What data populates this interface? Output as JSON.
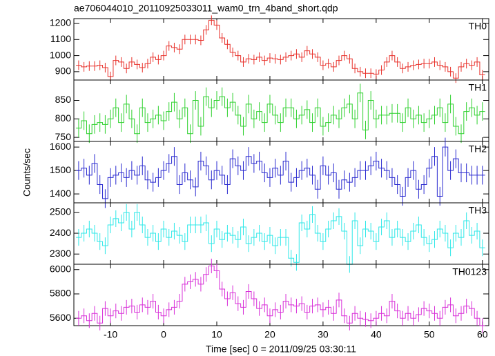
{
  "chart_data": {
    "type": "step",
    "title": "ae706044010_20110925033011_wam0_trn_4band_short.qdp",
    "xlabel": "Time [sec] 0 = 2011/09/25 03:30:11",
    "ylabel": "Counts/sec",
    "xlim": [
      -16.9,
      61.2
    ],
    "xticks": [
      -10,
      0,
      10,
      20,
      30,
      40,
      50,
      60
    ],
    "x": [
      -16,
      -15,
      -14,
      -13,
      -12,
      -11,
      -10,
      -9,
      -8,
      -7,
      -6,
      -5,
      -4,
      -3,
      -2,
      -1,
      0,
      1,
      2,
      3,
      4,
      5,
      6,
      7,
      8,
      9,
      10,
      11,
      12,
      13,
      14,
      15,
      16,
      17,
      18,
      19,
      20,
      21,
      22,
      23,
      24,
      25,
      26,
      27,
      28,
      29,
      30,
      31,
      32,
      33,
      34,
      35,
      36,
      37,
      38,
      39,
      40,
      41,
      42,
      43,
      44,
      45,
      46,
      47,
      48,
      49,
      50,
      51,
      52,
      53,
      54,
      55,
      56,
      57,
      58,
      59,
      60
    ],
    "series": [
      {
        "name": "TH0",
        "color": "#e8302a",
        "error": 30,
        "ylim": [
          848,
          1230
        ],
        "yticks": [
          900,
          1000,
          1100,
          1200
        ],
        "values": [
          940,
          930,
          935,
          935,
          940,
          925,
          870,
          970,
          960,
          920,
          960,
          945,
          925,
          950,
          990,
          975,
          1000,
          1060,
          1050,
          1040,
          1100,
          1100,
          1100,
          1095,
          1160,
          1220,
          1190,
          1110,
          1070,
          1020,
          1000,
          960,
          980,
          975,
          990,
          970,
          985,
          980,
          975,
          990,
          1000,
          1010,
          990,
          1030,
          1010,
          990,
          940,
          950,
          930,
          970,
          1000,
          980,
          920,
          900,
          890,
          890,
          885,
          910,
          960,
          1000,
          960,
          920,
          930,
          940,
          945,
          950,
          950,
          960,
          940,
          930,
          900,
          860,
          930,
          950,
          940,
          960,
          880
        ]
      },
      {
        "name": "TH1",
        "color": "#2ed12e",
        "error": 25,
        "ylim": [
          739,
          905
        ],
        "yticks": [
          750,
          800,
          850
        ],
        "values": [
          775,
          795,
          760,
          785,
          790,
          785,
          800,
          830,
          790,
          840,
          800,
          760,
          830,
          790,
          800,
          810,
          795,
          820,
          845,
          800,
          830,
          760,
          850,
          780,
          860,
          830,
          850,
          860,
          830,
          845,
          810,
          780,
          840,
          800,
          820,
          790,
          840,
          810,
          790,
          830,
          830,
          800,
          810,
          825,
          790,
          830,
          780,
          790,
          810,
          800,
          830,
          840,
          800,
          870,
          770,
          850,
          800,
          810,
          810,
          815,
          815,
          790,
          830,
          800,
          810,
          790,
          800,
          810,
          830,
          790,
          840,
          780,
          760,
          820,
          830,
          810,
          820
        ]
      },
      {
        "name": "TH2",
        "color": "#2a2ad0",
        "error": 40,
        "ylim": [
          1362,
          1624
        ],
        "yticks": [
          1400,
          1500,
          1600
        ],
        "values": [
          1500,
          1510,
          1480,
          1530,
          1440,
          1380,
          1470,
          1480,
          1490,
          1470,
          1500,
          1480,
          1520,
          1460,
          1450,
          1470,
          1500,
          1530,
          1560,
          1440,
          1490,
          1460,
          1430,
          1540,
          1520,
          1460,
          1500,
          1480,
          1440,
          1550,
          1520,
          1500,
          1560,
          1530,
          1540,
          1490,
          1470,
          1510,
          1480,
          1540,
          1450,
          1470,
          1500,
          1510,
          1480,
          1420,
          1520,
          1480,
          1490,
          1420,
          1460,
          1450,
          1470,
          1500,
          1500,
          1520,
          1540,
          1510,
          1500,
          1470,
          1440,
          1390,
          1470,
          1500,
          1420,
          1440,
          1510,
          1560,
          1390,
          1600,
          1500,
          1550,
          1490,
          1490,
          1480,
          1480,
          1480
        ]
      },
      {
        "name": "TH3",
        "color": "#2ee8e8",
        "error": 40,
        "ylim": [
          2251,
          2546
        ],
        "yticks": [
          2300,
          2400,
          2500
        ],
        "values": [
          2380,
          2400,
          2420,
          2400,
          2360,
          2340,
          2440,
          2470,
          2450,
          2500,
          2420,
          2500,
          2440,
          2380,
          2400,
          2360,
          2420,
          2380,
          2410,
          2390,
          2360,
          2440,
          2440,
          2440,
          2450,
          2350,
          2420,
          2370,
          2400,
          2390,
          2370,
          2430,
          2350,
          2380,
          2400,
          2360,
          2390,
          2340,
          2380,
          2380,
          2280,
          2260,
          2450,
          2420,
          2490,
          2400,
          2360,
          2420,
          2460,
          2480,
          2410,
          2250,
          2460,
          2340,
          2420,
          2410,
          2360,
          2430,
          2460,
          2380,
          2420,
          2380,
          2360,
          2410,
          2440,
          2380,
          2350,
          2370,
          2420,
          2400,
          2330,
          2400,
          2380,
          2460,
          2390,
          2410,
          2330
        ]
      },
      {
        "name": "TH0123",
        "color": "#d82ed8",
        "error": 60,
        "ylim": [
          5539,
          6044
        ],
        "yticks": [
          5600,
          5800,
          6000
        ],
        "values": [
          5600,
          5620,
          5580,
          5640,
          5560,
          5680,
          5620,
          5660,
          5640,
          5690,
          5700,
          5650,
          5710,
          5690,
          5740,
          5650,
          5620,
          5670,
          5690,
          5740,
          5880,
          5900,
          5920,
          5880,
          5960,
          6030,
          5990,
          5840,
          5760,
          5810,
          5720,
          5690,
          5820,
          5760,
          5680,
          5710,
          5620,
          5670,
          5650,
          5740,
          5710,
          5700,
          5720,
          5650,
          5700,
          5710,
          5670,
          5690,
          5640,
          5750,
          5620,
          5560,
          5640,
          5600,
          5590,
          5580,
          5600,
          5640,
          5620,
          5740,
          5660,
          5600,
          5640,
          5600,
          5630,
          5680,
          5660,
          5640,
          5600,
          5690,
          5710,
          5620,
          5640,
          5700,
          5680,
          5600,
          5540
        ]
      }
    ]
  }
}
